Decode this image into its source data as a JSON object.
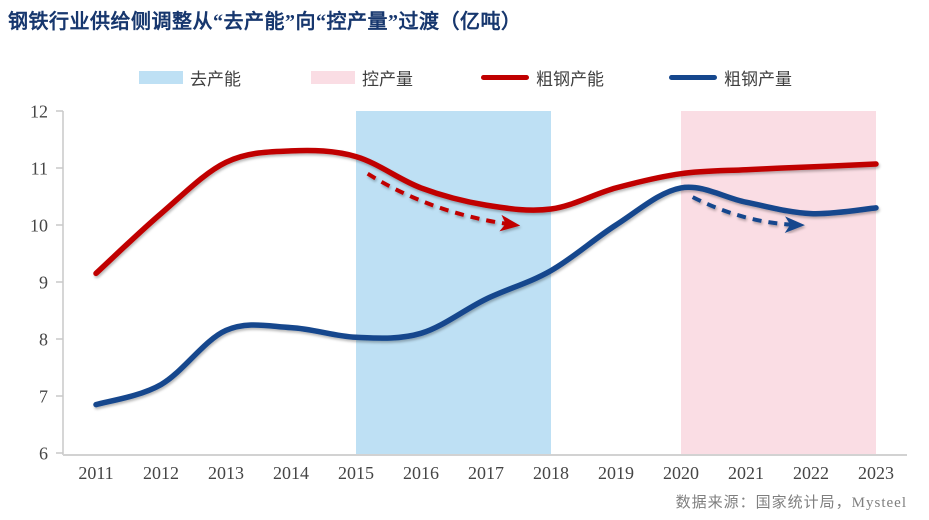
{
  "title": "钢铁行业供给侧调整从“去产能”向“控产量”过渡（亿吨）",
  "source": "数据来源：国家统计局，Mysteel",
  "colors": {
    "title": "#17376E",
    "capacity_line": "#C00000",
    "output_line": "#15478D",
    "decapacity_region": "#BEE0F4",
    "control_region": "#FADDE4",
    "axis": "#C9C9C9",
    "tick_label": "#454545",
    "source_text": "#7F7F7F"
  },
  "legend": {
    "items": [
      {
        "label": "去产能",
        "type": "area",
        "color": "#BEE0F4"
      },
      {
        "label": "控产量",
        "type": "area",
        "color": "#FADDE4"
      },
      {
        "label": "粗钢产能",
        "type": "line",
        "color": "#C00000"
      },
      {
        "label": "粗钢产量",
        "type": "line",
        "color": "#15478D"
      }
    ]
  },
  "chart_data": {
    "type": "line",
    "title": "钢铁行业供给侧调整从“去产能”向“控产量”过渡（亿吨）",
    "xlabel": "",
    "ylabel": "",
    "x": [
      2011,
      2012,
      2013,
      2014,
      2015,
      2016,
      2017,
      2018,
      2019,
      2020,
      2021,
      2022,
      2023
    ],
    "ylim": [
      6,
      12
    ],
    "yticks": [
      6,
      7,
      8,
      9,
      10,
      11,
      12
    ],
    "grid": false,
    "legend_position": "top",
    "series": [
      {
        "name": "粗钢产能",
        "color": "#C00000",
        "values": [
          9.15,
          10.2,
          11.1,
          11.3,
          11.2,
          10.65,
          10.35,
          10.28,
          10.65,
          10.9,
          10.97,
          11.02,
          11.07
        ]
      },
      {
        "name": "粗钢产量",
        "color": "#15478D",
        "values": [
          6.85,
          7.2,
          8.15,
          8.2,
          8.03,
          8.1,
          8.7,
          9.2,
          10.0,
          10.65,
          10.4,
          10.2,
          10.3
        ]
      }
    ],
    "regions": [
      {
        "label": "去产能",
        "x0": 2015,
        "x1": 2018,
        "color": "#BEE0F4"
      },
      {
        "label": "控产量",
        "x0": 2020,
        "x1": 2023,
        "color": "#FADDE4"
      }
    ],
    "annotations": [
      {
        "name": "capacity-cut-trend-arrow",
        "color": "#C00000",
        "from": [
          2015.18,
          10.9
        ],
        "ctrl": [
          2016.2,
          10.18
        ],
        "to": [
          2017.45,
          10.0
        ]
      },
      {
        "name": "output-control-trend-arrow",
        "color": "#15478D",
        "from": [
          2020.18,
          10.49
        ],
        "ctrl": [
          2021.0,
          10.02
        ],
        "to": [
          2021.83,
          10.0
        ]
      }
    ]
  }
}
